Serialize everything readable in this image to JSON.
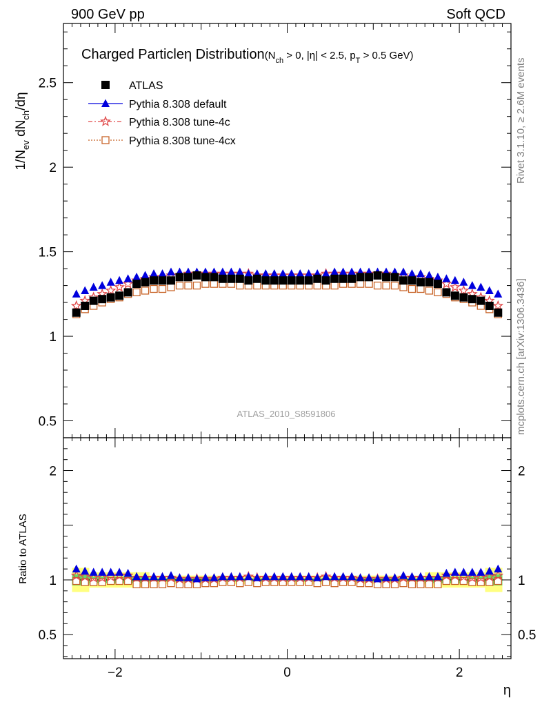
{
  "header": {
    "left": "900 GeV pp",
    "right": "Soft QCD"
  },
  "plot_title": {
    "main": "Charged Particleη Distribution",
    "cuts_prefix": "(N",
    "cuts_sub1": "ch",
    "cuts_mid": " > 0, |η| < 2.5, p",
    "cuts_sub2": "T",
    "cuts_suffix": " > 0.5 GeV)"
  },
  "side_labels": {
    "rivet": "Rivet 3.1.10, ≥ 2.6M events",
    "mcplots": "mcplots.cern.ch [arXiv:1306.3436]"
  },
  "analysis_label": "ATLAS_2010_S8591806",
  "colors": {
    "atlas": "#000000",
    "default": "#0000dd",
    "tune4c": "#e04848",
    "tune4cx": "#c86428",
    "band_outer": "#ffff80",
    "band_inner": "#66dd66"
  },
  "chart_data": [
    {
      "type": "scatter",
      "panel": "main",
      "ylabel": {
        "base": "1/N",
        "sub1": "ev",
        "mid": " dN",
        "sub2": "ch",
        "tail": "/dη"
      },
      "xlim": [
        -2.6,
        2.6
      ],
      "ylim": [
        0.4,
        2.85
      ],
      "x_ticks": [
        -2,
        0,
        2
      ],
      "x_tick_labels": [
        "−2",
        "0",
        "2"
      ],
      "y_ticks": [
        0.5,
        1,
        1.5,
        2,
        2.5
      ],
      "y_tick_labels": [
        "0.5",
        "1",
        "1.5",
        "2",
        "2.5"
      ],
      "x": [
        -2.45,
        -2.35,
        -2.25,
        -2.15,
        -2.05,
        -1.95,
        -1.85,
        -1.75,
        -1.65,
        -1.55,
        -1.45,
        -1.35,
        -1.25,
        -1.15,
        -1.05,
        -0.95,
        -0.85,
        -0.75,
        -0.65,
        -0.55,
        -0.45,
        -0.35,
        -0.25,
        -0.15,
        -0.05,
        0.05,
        0.15,
        0.25,
        0.35,
        0.45,
        0.55,
        0.65,
        0.75,
        0.85,
        0.95,
        1.05,
        1.15,
        1.25,
        1.35,
        1.45,
        1.55,
        1.65,
        1.75,
        1.85,
        1.95,
        2.05,
        2.15,
        2.25,
        2.35,
        2.45
      ],
      "series": [
        {
          "name": "ATLAS",
          "marker": "square",
          "values": [
            1.14,
            1.18,
            1.21,
            1.22,
            1.23,
            1.24,
            1.26,
            1.31,
            1.32,
            1.33,
            1.33,
            1.33,
            1.35,
            1.35,
            1.36,
            1.35,
            1.35,
            1.34,
            1.34,
            1.34,
            1.33,
            1.34,
            1.33,
            1.33,
            1.33,
            1.33,
            1.33,
            1.33,
            1.34,
            1.33,
            1.34,
            1.34,
            1.34,
            1.35,
            1.35,
            1.36,
            1.35,
            1.35,
            1.33,
            1.33,
            1.32,
            1.32,
            1.31,
            1.26,
            1.24,
            1.23,
            1.22,
            1.21,
            1.18,
            1.14
          ]
        },
        {
          "name": "Pythia 8.308 default",
          "marker": "triangle",
          "values": [
            1.25,
            1.27,
            1.29,
            1.3,
            1.32,
            1.33,
            1.34,
            1.35,
            1.36,
            1.37,
            1.37,
            1.38,
            1.38,
            1.38,
            1.38,
            1.38,
            1.38,
            1.38,
            1.38,
            1.38,
            1.37,
            1.37,
            1.37,
            1.37,
            1.37,
            1.37,
            1.37,
            1.37,
            1.37,
            1.37,
            1.38,
            1.38,
            1.38,
            1.38,
            1.38,
            1.38,
            1.38,
            1.38,
            1.38,
            1.37,
            1.37,
            1.36,
            1.35,
            1.34,
            1.33,
            1.32,
            1.3,
            1.29,
            1.27,
            1.25
          ]
        },
        {
          "name": "Pythia 8.308 tune-4c",
          "marker": "star",
          "values": [
            1.18,
            1.21,
            1.23,
            1.25,
            1.27,
            1.29,
            1.31,
            1.33,
            1.34,
            1.35,
            1.35,
            1.36,
            1.36,
            1.37,
            1.37,
            1.37,
            1.37,
            1.37,
            1.37,
            1.37,
            1.37,
            1.36,
            1.36,
            1.36,
            1.36,
            1.36,
            1.36,
            1.36,
            1.36,
            1.37,
            1.37,
            1.37,
            1.37,
            1.37,
            1.37,
            1.37,
            1.37,
            1.36,
            1.36,
            1.35,
            1.35,
            1.34,
            1.33,
            1.31,
            1.29,
            1.27,
            1.25,
            1.23,
            1.21,
            1.18
          ]
        },
        {
          "name": "Pythia 8.308 tune-4cx",
          "marker": "open-square",
          "values": [
            1.13,
            1.16,
            1.18,
            1.2,
            1.22,
            1.23,
            1.25,
            1.26,
            1.27,
            1.28,
            1.28,
            1.29,
            1.3,
            1.3,
            1.3,
            1.31,
            1.31,
            1.31,
            1.31,
            1.3,
            1.3,
            1.3,
            1.3,
            1.3,
            1.3,
            1.3,
            1.3,
            1.3,
            1.3,
            1.3,
            1.3,
            1.31,
            1.31,
            1.31,
            1.31,
            1.3,
            1.3,
            1.3,
            1.29,
            1.28,
            1.28,
            1.27,
            1.26,
            1.25,
            1.23,
            1.22,
            1.2,
            1.18,
            1.16,
            1.13
          ]
        }
      ],
      "legend": "top-left"
    },
    {
      "type": "scatter",
      "panel": "ratio",
      "ylabel": "Ratio to ATLAS",
      "xlabel": "η",
      "xlim": [
        -2.6,
        2.6
      ],
      "ylim": [
        0.28,
        2.3
      ],
      "x_ticks": [
        -2,
        0,
        2
      ],
      "x_tick_labels": [
        "−2",
        "0",
        "2"
      ],
      "y_ticks": [
        0.5,
        1,
        2
      ],
      "y_tick_labels": [
        "0.5",
        "1",
        "2"
      ],
      "band_edges": [
        -2.5,
        -2.3,
        -1.6,
        1.6,
        2.3,
        2.5
      ],
      "band_outer_half": [
        0.11,
        0.07,
        0.04,
        0.07,
        0.11
      ],
      "band_inner_half": [
        0.05,
        0.03,
        0.015,
        0.03,
        0.05
      ],
      "series": [
        {
          "name": "Pythia 8.308 default",
          "marker": "triangle",
          "values": [
            1.1,
            1.08,
            1.07,
            1.07,
            1.07,
            1.07,
            1.06,
            1.03,
            1.03,
            1.03,
            1.03,
            1.04,
            1.02,
            1.02,
            1.01,
            1.02,
            1.02,
            1.03,
            1.03,
            1.03,
            1.03,
            1.02,
            1.03,
            1.03,
            1.03,
            1.03,
            1.03,
            1.03,
            1.02,
            1.03,
            1.03,
            1.03,
            1.03,
            1.02,
            1.02,
            1.01,
            1.02,
            1.02,
            1.04,
            1.03,
            1.03,
            1.03,
            1.03,
            1.06,
            1.07,
            1.07,
            1.07,
            1.07,
            1.08,
            1.1
          ]
        },
        {
          "name": "Pythia 8.308 tune-4c",
          "marker": "star",
          "values": [
            1.04,
            1.03,
            1.02,
            1.02,
            1.03,
            1.04,
            1.04,
            1.02,
            1.02,
            1.02,
            1.02,
            1.02,
            1.01,
            1.01,
            1.01,
            1.01,
            1.01,
            1.02,
            1.02,
            1.02,
            1.03,
            1.02,
            1.02,
            1.02,
            1.02,
            1.02,
            1.02,
            1.02,
            1.02,
            1.03,
            1.02,
            1.02,
            1.02,
            1.01,
            1.01,
            1.01,
            1.01,
            1.01,
            1.02,
            1.02,
            1.02,
            1.02,
            1.02,
            1.04,
            1.04,
            1.03,
            1.02,
            1.02,
            1.03,
            1.04
          ]
        },
        {
          "name": "Pythia 8.308 tune-4cx",
          "marker": "open-square",
          "values": [
            0.99,
            0.98,
            0.98,
            0.98,
            0.99,
            0.99,
            0.99,
            0.96,
            0.96,
            0.96,
            0.96,
            0.97,
            0.96,
            0.96,
            0.96,
            0.97,
            0.97,
            0.98,
            0.98,
            0.97,
            0.98,
            0.97,
            0.98,
            0.98,
            0.98,
            0.98,
            0.98,
            0.98,
            0.97,
            0.98,
            0.97,
            0.98,
            0.98,
            0.97,
            0.97,
            0.96,
            0.96,
            0.96,
            0.97,
            0.96,
            0.96,
            0.96,
            0.96,
            0.99,
            0.99,
            0.99,
            0.98,
            0.98,
            0.98,
            0.99
          ]
        }
      ]
    }
  ]
}
